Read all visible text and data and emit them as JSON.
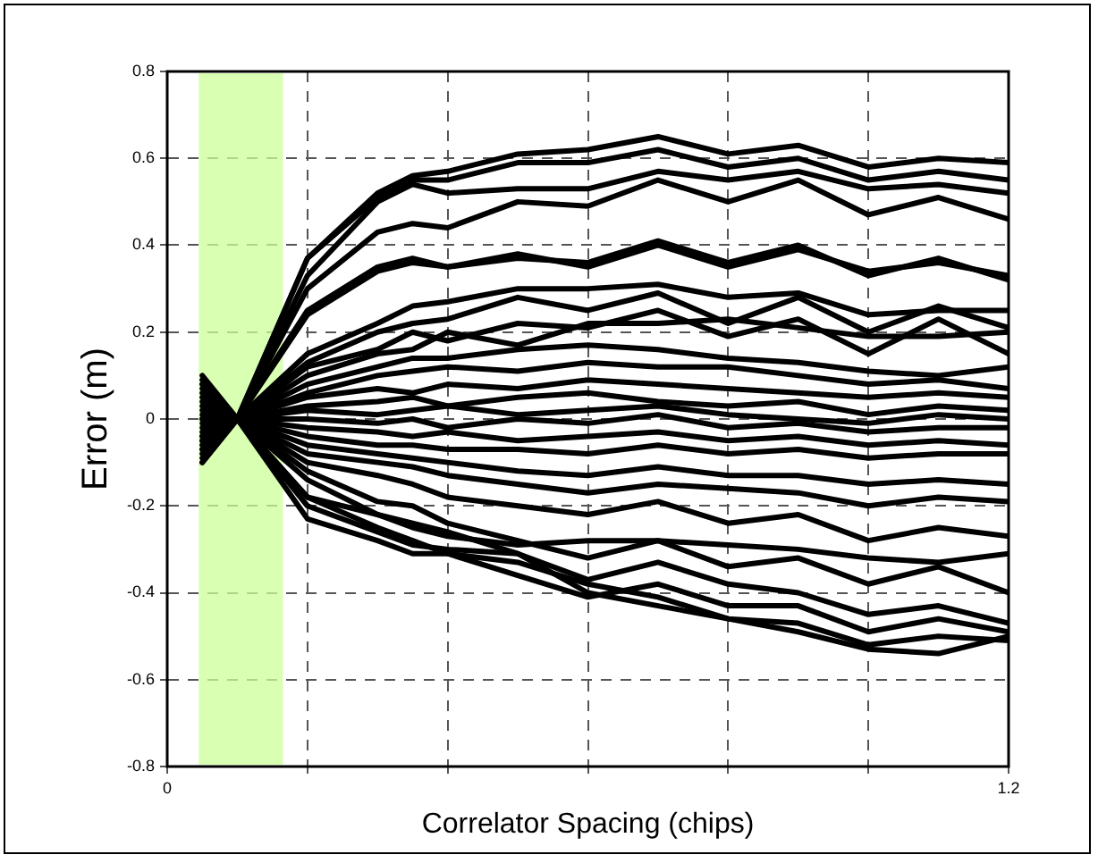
{
  "chart_data": {
    "type": "line",
    "xlabel": "Correlator Spacing (chips)",
    "ylabel": "Error (m)",
    "x": [
      0.05,
      0.1,
      0.2,
      0.3,
      0.35,
      0.4,
      0.5,
      0.6,
      0.7,
      0.8,
      0.9,
      1.0,
      1.1,
      1.2
    ],
    "xlim": [
      0,
      1.2
    ],
    "xticks": [
      0,
      {
        "value": 0.2,
        "label": null
      },
      {
        "value": 0.4,
        "label": null
      },
      {
        "value": 0.6,
        "label": null
      },
      {
        "value": 0.8,
        "label": null
      },
      {
        "value": 1.0,
        "label": null
      },
      1.2
    ],
    "ylim": [
      -0.8,
      0.8
    ],
    "yticks": [
      -0.8,
      -0.6,
      -0.4,
      -0.2,
      0,
      0.2,
      0.4,
      0.6,
      0.8
    ],
    "grid": true,
    "legend": false,
    "marker": "none",
    "line_style": "solid",
    "bands": [
      {
        "axis": "x",
        "from": 0.045,
        "to": 0.165,
        "color": "#ccff99"
      }
    ],
    "series": [
      {
        "color": "#000000",
        "values": [
          -0.1,
          0,
          0.37,
          0.52,
          0.56,
          0.57,
          0.61,
          0.62,
          0.65,
          0.61,
          0.63,
          0.58,
          0.6,
          0.59
        ]
      },
      {
        "color": "#000000",
        "values": [
          -0.1,
          0,
          0.37,
          0.51,
          0.55,
          0.55,
          0.59,
          0.59,
          0.62,
          0.58,
          0.6,
          0.55,
          0.57,
          0.55
        ]
      },
      {
        "color": "#000000",
        "values": [
          -0.09,
          0,
          0.33,
          0.5,
          0.54,
          0.52,
          0.53,
          0.53,
          0.57,
          0.55,
          0.57,
          0.53,
          0.54,
          0.52
        ]
      },
      {
        "color": "#000000",
        "values": [
          -0.08,
          0,
          0.3,
          0.43,
          0.45,
          0.44,
          0.5,
          0.49,
          0.55,
          0.5,
          0.55,
          0.47,
          0.51,
          0.46
        ]
      },
      {
        "color": "#000000",
        "values": [
          -0.07,
          0,
          0.25,
          0.35,
          0.37,
          0.35,
          0.37,
          0.36,
          0.41,
          0.36,
          0.4,
          0.33,
          0.37,
          0.32
        ]
      },
      {
        "color": "#000000",
        "values": [
          -0.07,
          0,
          0.24,
          0.34,
          0.36,
          0.35,
          0.38,
          0.35,
          0.4,
          0.35,
          0.39,
          0.34,
          0.36,
          0.33
        ]
      },
      {
        "color": "#000000",
        "values": [
          -0.06,
          0,
          0.15,
          0.22,
          0.26,
          0.27,
          0.3,
          0.3,
          0.31,
          0.28,
          0.29,
          0.24,
          0.25,
          0.25
        ]
      },
      {
        "color": "#000000",
        "values": [
          -0.05,
          0,
          0.13,
          0.2,
          0.22,
          0.23,
          0.28,
          0.25,
          0.29,
          0.22,
          0.28,
          0.2,
          0.26,
          0.21
        ]
      },
      {
        "color": "#000000",
        "values": [
          -0.05,
          0,
          0.12,
          0.16,
          0.2,
          0.18,
          0.22,
          0.21,
          0.25,
          0.19,
          0.23,
          0.15,
          0.23,
          0.15
        ]
      },
      {
        "color": "#000000",
        "values": [
          -0.04,
          0,
          0.1,
          0.15,
          0.16,
          0.2,
          0.17,
          0.22,
          0.22,
          0.23,
          0.21,
          0.19,
          0.19,
          0.2
        ]
      },
      {
        "color": "#000000",
        "values": [
          -0.04,
          0,
          0.08,
          0.12,
          0.14,
          0.14,
          0.16,
          0.17,
          0.16,
          0.14,
          0.13,
          0.11,
          0.1,
          0.12
        ]
      },
      {
        "color": "#000000",
        "values": [
          -0.03,
          0,
          0.06,
          0.1,
          0.11,
          0.12,
          0.11,
          0.13,
          0.12,
          0.12,
          0.1,
          0.08,
          0.09,
          0.07
        ]
      },
      {
        "color": "#000000",
        "values": [
          -0.02,
          0,
          0.05,
          0.07,
          0.06,
          0.08,
          0.07,
          0.09,
          0.08,
          0.07,
          0.06,
          0.05,
          0.06,
          0.05
        ]
      },
      {
        "color": "#000000",
        "values": [
          -0.01,
          0,
          0.03,
          0.04,
          0.05,
          0.03,
          0.05,
          0.06,
          0.04,
          0.03,
          0.04,
          0.01,
          0.03,
          0.02
        ]
      },
      {
        "color": "#000000",
        "values": [
          0,
          0,
          0.02,
          0.01,
          0.02,
          0.03,
          0.01,
          0.02,
          0.03,
          0.01,
          0,
          -0.01,
          0.01,
          0
        ]
      },
      {
        "color": "#000000",
        "values": [
          0,
          0,
          0,
          -0.01,
          0,
          -0.02,
          0,
          -0.01,
          0.01,
          -0.02,
          -0.01,
          -0.03,
          -0.02,
          -0.02
        ]
      },
      {
        "color": "#000000",
        "values": [
          0.01,
          0,
          -0.02,
          -0.03,
          -0.04,
          -0.03,
          -0.05,
          -0.04,
          -0.03,
          -0.05,
          -0.04,
          -0.06,
          -0.05,
          -0.06
        ]
      },
      {
        "color": "#000000",
        "values": [
          0.02,
          0,
          -0.04,
          -0.06,
          -0.06,
          -0.07,
          -0.07,
          -0.08,
          -0.06,
          -0.08,
          -0.07,
          -0.09,
          -0.08,
          -0.08
        ]
      },
      {
        "color": "#000000",
        "values": [
          0.03,
          0,
          -0.06,
          -0.08,
          -0.09,
          -0.1,
          -0.12,
          -0.13,
          -0.11,
          -0.13,
          -0.13,
          -0.15,
          -0.14,
          -0.15
        ]
      },
      {
        "color": "#000000",
        "values": [
          0.04,
          0,
          -0.08,
          -0.1,
          -0.11,
          -0.13,
          -0.15,
          -0.17,
          -0.15,
          -0.16,
          -0.17,
          -0.2,
          -0.18,
          -0.19
        ]
      },
      {
        "color": "#000000",
        "values": [
          0.05,
          0,
          -0.1,
          -0.13,
          -0.15,
          -0.18,
          -0.2,
          -0.22,
          -0.19,
          -0.24,
          -0.22,
          -0.28,
          -0.25,
          -0.27
        ]
      },
      {
        "color": "#000000",
        "values": [
          0.06,
          0,
          -0.12,
          -0.19,
          -0.2,
          -0.24,
          -0.28,
          -0.32,
          -0.28,
          -0.34,
          -0.32,
          -0.38,
          -0.34,
          -0.4
        ]
      },
      {
        "color": "#000000",
        "values": [
          0.07,
          0,
          -0.14,
          -0.22,
          -0.24,
          -0.26,
          -0.31,
          -0.37,
          -0.33,
          -0.38,
          -0.4,
          -0.45,
          -0.43,
          -0.47
        ]
      },
      {
        "color": "#000000",
        "values": [
          0.08,
          0,
          -0.18,
          -0.25,
          -0.28,
          -0.31,
          -0.36,
          -0.41,
          -0.38,
          -0.43,
          -0.43,
          -0.49,
          -0.46,
          -0.49
        ]
      },
      {
        "color": "#000000",
        "values": [
          0.09,
          0,
          -0.23,
          -0.28,
          -0.31,
          -0.31,
          -0.33,
          -0.38,
          -0.41,
          -0.46,
          -0.47,
          -0.52,
          -0.5,
          -0.51
        ]
      },
      {
        "color": "#000000",
        "values": [
          0.1,
          0,
          -0.2,
          -0.26,
          -0.29,
          -0.3,
          -0.31,
          -0.4,
          -0.43,
          -0.46,
          -0.49,
          -0.53,
          -0.54,
          -0.5
        ]
      },
      {
        "color": "#000000",
        "values": [
          0.08,
          0,
          -0.18,
          -0.22,
          -0.25,
          -0.27,
          -0.29,
          -0.28,
          -0.28,
          -0.29,
          -0.3,
          -0.32,
          -0.33,
          -0.31
        ]
      }
    ]
  }
}
